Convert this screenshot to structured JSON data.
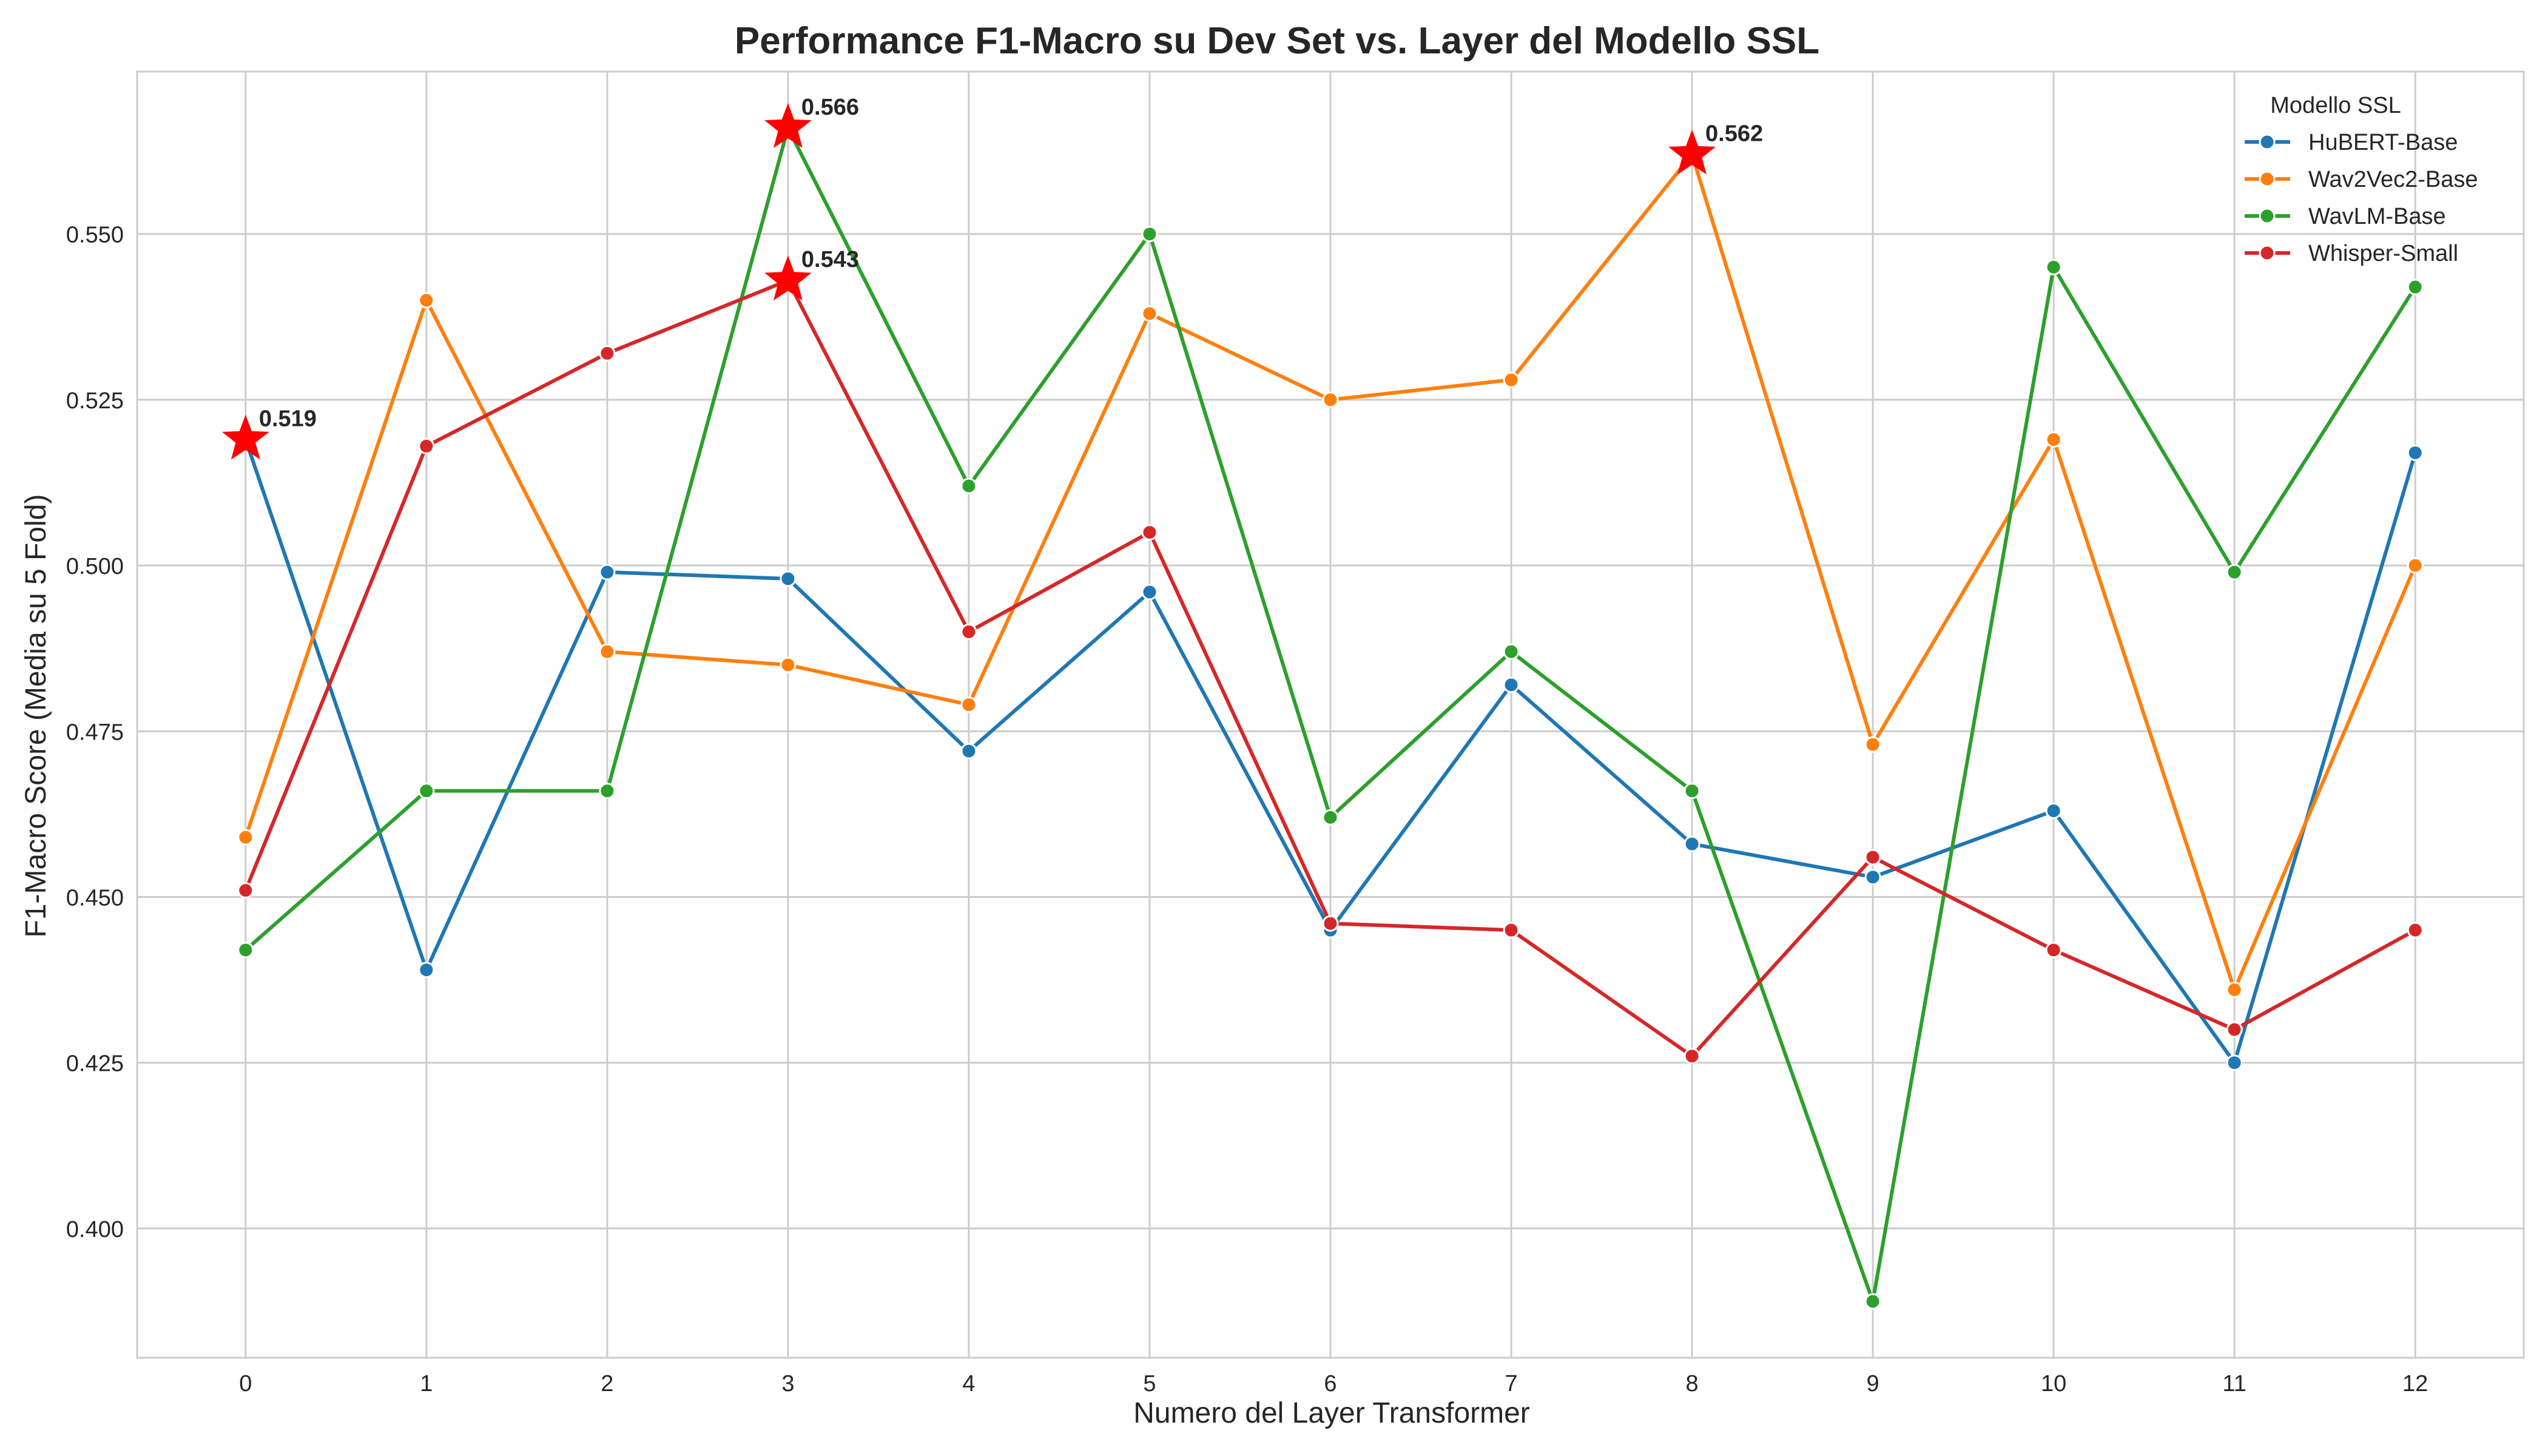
{
  "chart_data": {
    "type": "line",
    "title": "Performance F1-Macro su Dev Set vs. Layer del Modello SSL",
    "xlabel": "Numero del Layer Transformer",
    "ylabel": "F1-Macro Score (Media su 5 Fold)",
    "x": [
      0,
      1,
      2,
      3,
      4,
      5,
      6,
      7,
      8,
      9,
      10,
      11,
      12
    ],
    "xlim": [
      -0.6,
      12.6
    ],
    "ylim": [
      0.3805,
      0.5745
    ],
    "yticks": [
      0.4,
      0.425,
      0.45,
      0.475,
      0.5,
      0.525,
      0.55
    ],
    "grid": true,
    "legend": {
      "title": "Modello SSL",
      "placement": "top-right"
    },
    "series": [
      {
        "name": "HuBERT-Base",
        "color": "#1f77b4",
        "values": [
          0.519,
          0.439,
          0.499,
          0.498,
          0.472,
          0.496,
          0.445,
          0.482,
          0.458,
          0.453,
          0.463,
          0.425,
          0.517
        ]
      },
      {
        "name": "Wav2Vec2-Base",
        "color": "#ff7f0e",
        "values": [
          0.459,
          0.54,
          0.487,
          0.485,
          0.479,
          0.538,
          0.525,
          0.528,
          0.562,
          0.473,
          0.519,
          0.436,
          0.5
        ]
      },
      {
        "name": "WavLM-Base",
        "color": "#2ca02c",
        "values": [
          0.442,
          0.466,
          0.466,
          0.566,
          0.512,
          0.55,
          0.462,
          0.487,
          0.466,
          0.389,
          0.545,
          0.499,
          0.542
        ]
      },
      {
        "name": "Whisper-Small",
        "color": "#d62728",
        "values": [
          0.451,
          0.518,
          0.532,
          0.543,
          0.49,
          0.505,
          0.446,
          0.445,
          0.426,
          0.456,
          0.442,
          0.43,
          0.445
        ]
      }
    ],
    "best_markers": [
      {
        "x": 0,
        "y": 0.519,
        "label": "0.519"
      },
      {
        "x": 3,
        "y": 0.566,
        "label": "0.566"
      },
      {
        "x": 3,
        "y": 0.543,
        "label": "0.543"
      },
      {
        "x": 8,
        "y": 0.562,
        "label": "0.562"
      }
    ],
    "marker_color": "#ff0000"
  }
}
